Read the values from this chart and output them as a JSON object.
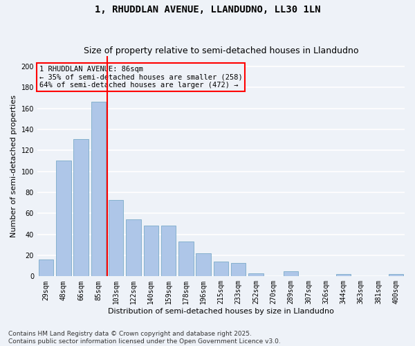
{
  "title": "1, RHUDDLAN AVENUE, LLANDUDNO, LL30 1LN",
  "subtitle": "Size of property relative to semi-detached houses in Llandudno",
  "xlabel": "Distribution of semi-detached houses by size in Llandudno",
  "ylabel": "Number of semi-detached properties",
  "categories": [
    "29sqm",
    "48sqm",
    "66sqm",
    "85sqm",
    "103sqm",
    "122sqm",
    "140sqm",
    "159sqm",
    "178sqm",
    "196sqm",
    "215sqm",
    "233sqm",
    "252sqm",
    "270sqm",
    "289sqm",
    "307sqm",
    "326sqm",
    "344sqm",
    "363sqm",
    "381sqm",
    "400sqm"
  ],
  "values": [
    16,
    110,
    131,
    166,
    73,
    54,
    48,
    48,
    33,
    22,
    14,
    13,
    3,
    0,
    5,
    0,
    0,
    2,
    0,
    0,
    2
  ],
  "bar_color": "#aec6e8",
  "bar_edge_color": "#7aaac8",
  "vline_x_index": 3,
  "vline_color": "red",
  "annotation_box_text": "1 RHUDDLAN AVENUE: 86sqm\n← 35% of semi-detached houses are smaller (258)\n64% of semi-detached houses are larger (472) →",
  "annotation_box_color": "red",
  "ylim": [
    0,
    210
  ],
  "yticks": [
    0,
    20,
    40,
    60,
    80,
    100,
    120,
    140,
    160,
    180,
    200
  ],
  "bg_color": "#eef2f8",
  "grid_color": "white",
  "footer_line1": "Contains HM Land Registry data © Crown copyright and database right 2025.",
  "footer_line2": "Contains public sector information licensed under the Open Government Licence v3.0.",
  "title_fontsize": 10,
  "subtitle_fontsize": 9,
  "axis_label_fontsize": 8,
  "tick_fontsize": 7,
  "annotation_fontsize": 7.5,
  "footer_fontsize": 6.5
}
